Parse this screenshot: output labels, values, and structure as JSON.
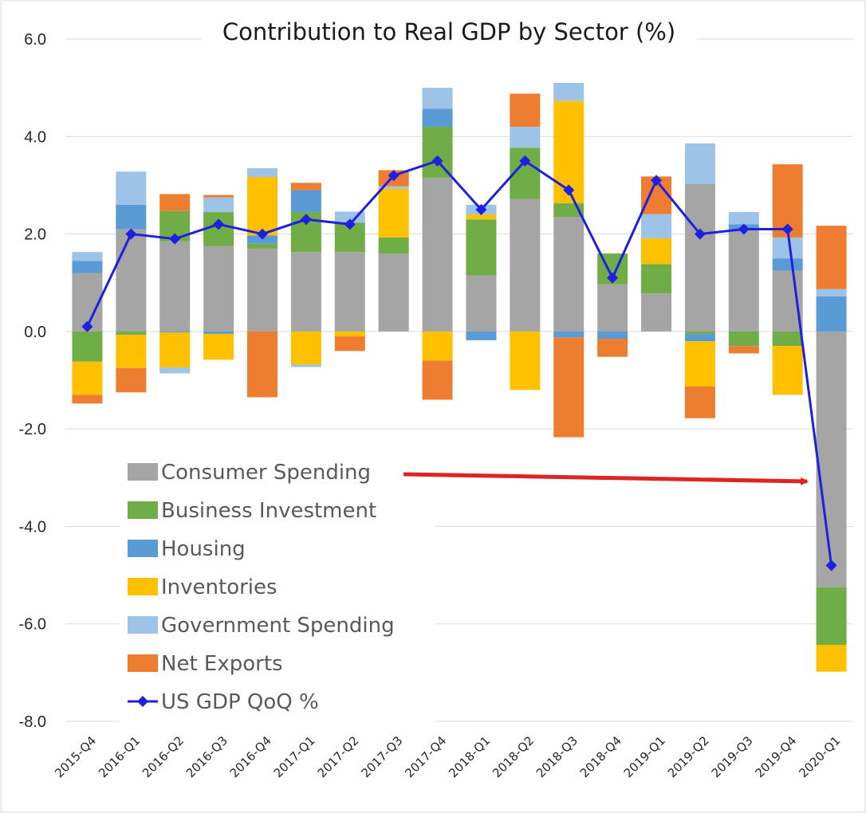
{
  "chart_data": {
    "type": "bar",
    "stacked": true,
    "title": "Contribution to Real GDP by Sector (%)",
    "xlabel": "",
    "ylabel": "",
    "ylim": [
      -8.0,
      6.0
    ],
    "y_ticks": [
      "6.0",
      "4.0",
      "2.0",
      "0.0",
      "-2.0",
      "-4.0",
      "-6.0",
      "-8.0"
    ],
    "grid": true,
    "legend_position": "bottom-left (inside plot)",
    "categories": [
      "2015-Q4",
      "2016-Q1",
      "2016-Q2",
      "2016-Q3",
      "2016-Q4",
      "2017-Q1",
      "2017-Q2",
      "2017-Q3",
      "2017-Q4",
      "2018-Q1",
      "2018-Q2",
      "2018-Q3",
      "2018-Q4",
      "2019-Q1",
      "2019-Q2",
      "2019-Q3",
      "2019-Q4",
      "2020-Q1"
    ],
    "series": [
      {
        "name": "Consumer Spending",
        "color": "#a5a5a5",
        "values": [
          1.2,
          2.1,
          1.85,
          1.75,
          1.7,
          1.63,
          1.63,
          1.6,
          3.15,
          1.15,
          2.72,
          2.35,
          0.97,
          0.78,
          3.03,
          2.1,
          1.25,
          -5.25
        ]
      },
      {
        "name": "Business Investment",
        "color": "#70ad47",
        "values": [
          -0.62,
          -0.07,
          0.62,
          0.7,
          0.1,
          0.82,
          0.6,
          0.33,
          1.05,
          1.15,
          1.05,
          0.28,
          0.63,
          0.6,
          -0.05,
          -0.3,
          -0.3,
          -1.18
        ]
      },
      {
        "name": "Housing",
        "color": "#5b9bd5",
        "values": [
          0.25,
          0.5,
          -0.02,
          -0.05,
          0.17,
          0.45,
          0.0,
          0.0,
          0.37,
          -0.18,
          0.0,
          -0.12,
          -0.15,
          0.0,
          -0.15,
          0.1,
          0.25,
          0.72
        ]
      },
      {
        "name": "Inventories",
        "color": "#ffc000",
        "values": [
          -0.68,
          -0.68,
          -0.72,
          -0.53,
          1.2,
          -0.68,
          -0.1,
          1.0,
          -0.6,
          0.1,
          -1.2,
          2.1,
          0.0,
          0.53,
          -0.93,
          0.0,
          -1.0,
          -0.55
        ]
      },
      {
        "name": "Government Spending",
        "color": "#9dc3e6",
        "values": [
          0.18,
          0.68,
          -0.12,
          0.3,
          0.18,
          -0.05,
          0.23,
          0.05,
          0.43,
          0.2,
          0.43,
          0.37,
          0.0,
          0.5,
          0.83,
          0.25,
          0.43,
          0.15
        ]
      },
      {
        "name": "Net Exports",
        "color": "#ed7d31",
        "values": [
          -0.18,
          -0.5,
          0.35,
          0.05,
          -1.35,
          0.15,
          -0.3,
          0.33,
          -0.8,
          0.0,
          0.68,
          -2.05,
          -0.37,
          0.77,
          -0.65,
          -0.15,
          1.5,
          1.3
        ]
      }
    ],
    "line": {
      "name": "US GDP QoQ %",
      "color": "#1f1fe0",
      "values": [
        0.1,
        2.0,
        1.9,
        2.2,
        2.0,
        2.3,
        2.2,
        3.2,
        3.5,
        2.5,
        3.5,
        2.9,
        1.1,
        3.1,
        2.0,
        2.1,
        2.1,
        -4.8
      ]
    },
    "annotation": {
      "type": "arrow",
      "color": "#e02424",
      "from_label": "Consumer Spending",
      "to_category": "2020-Q1"
    }
  }
}
